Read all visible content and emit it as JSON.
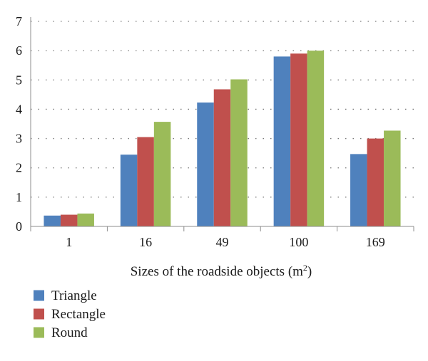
{
  "chart_data": {
    "type": "bar",
    "title": "",
    "xlabel": "Sizes of the roadside objects (m",
    "xlabel_superscript": "2",
    "xlabel_suffix": ")",
    "ylabel": "",
    "categories": [
      "1",
      "16",
      "49",
      "100",
      "169"
    ],
    "ylim": [
      0,
      7
    ],
    "yticks": [
      0,
      1,
      2,
      3,
      4,
      5,
      6,
      7
    ],
    "grid": true,
    "legend_position": "bottom-left",
    "series": [
      {
        "name": "Triangle",
        "color": "#4f81bd",
        "values": [
          0.37,
          2.45,
          4.23,
          5.8,
          2.47
        ]
      },
      {
        "name": "Rectangle",
        "color": "#c0504d",
        "values": [
          0.4,
          3.05,
          4.68,
          5.9,
          3.0
        ]
      },
      {
        "name": "Round",
        "color": "#9bbb59",
        "values": [
          0.44,
          3.57,
          5.02,
          6.0,
          3.27
        ]
      }
    ]
  }
}
